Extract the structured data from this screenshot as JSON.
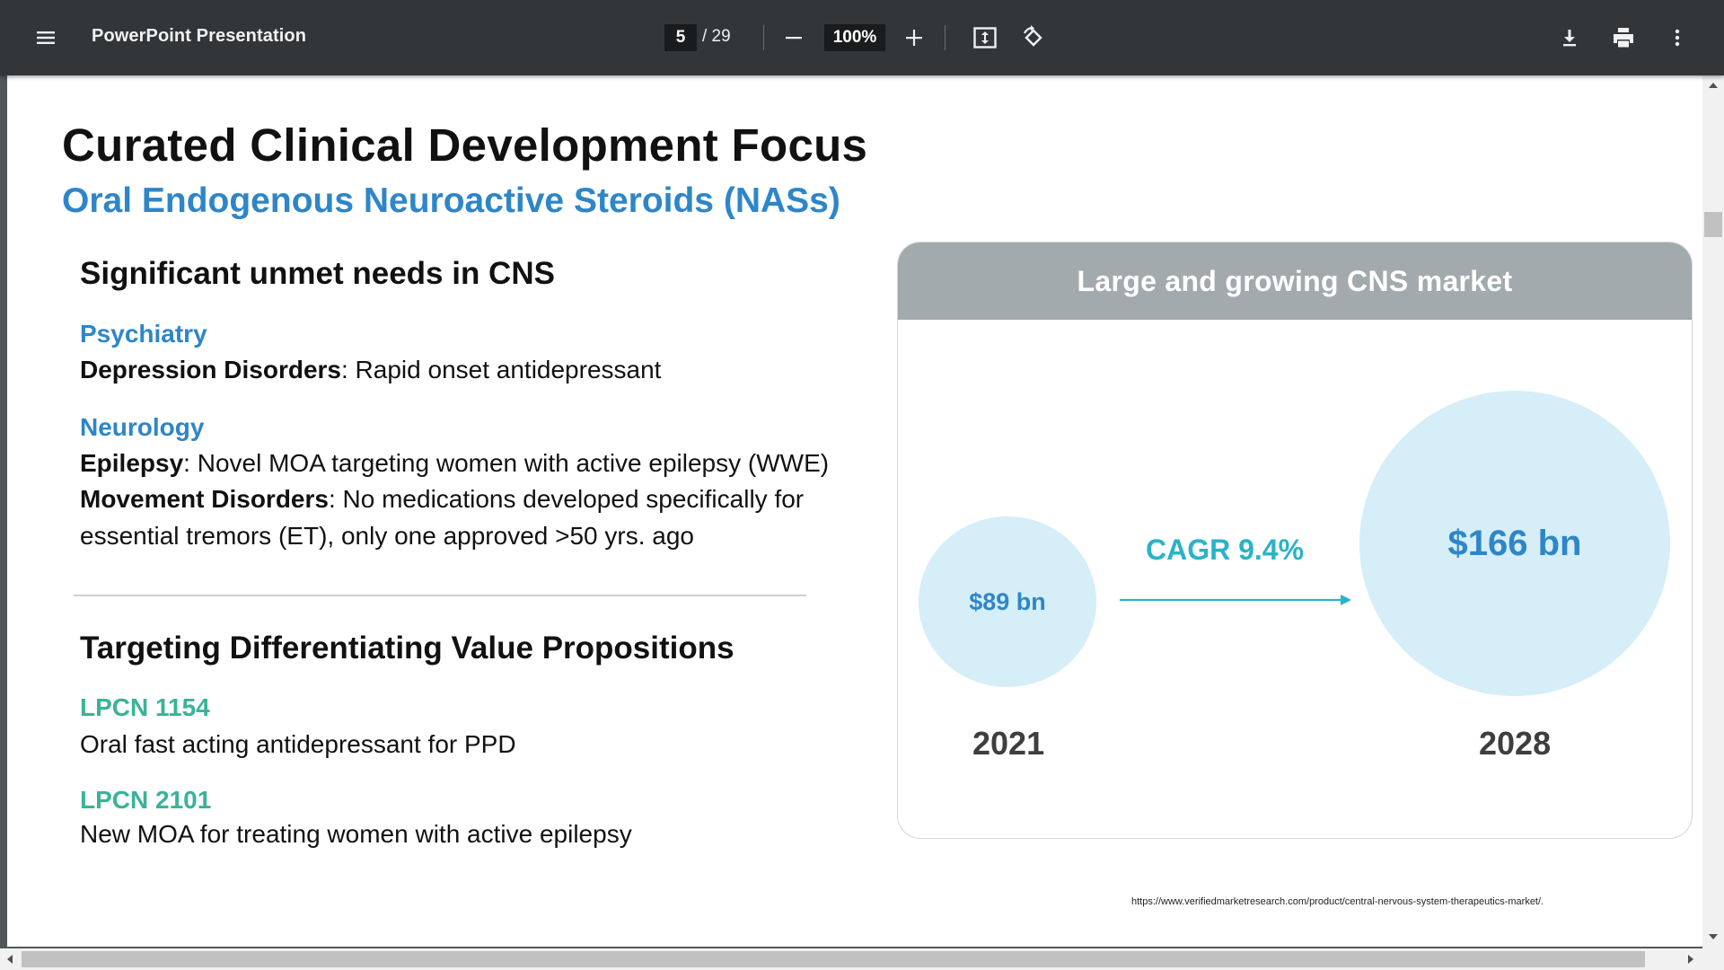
{
  "toolbar": {
    "title": "PowerPoint Presentation",
    "current_page": "5",
    "page_total": "/ 29",
    "zoom": "100%",
    "icons": [
      "menu-icon",
      "zoom-out-icon",
      "zoom-in-icon",
      "fit-page-icon",
      "rotate-icon",
      "download-icon",
      "print-icon",
      "more-options-icon"
    ]
  },
  "slide": {
    "title": "Curated Clinical Development Focus",
    "subtitle": "Oral Endogenous Neuroactive Steroids (NASs)",
    "unmet": {
      "heading": "Significant unmet needs in CNS",
      "psychiatry_label": "Psychiatry",
      "depression_term": "Depression Disorders",
      "depression_text": ":  Rapid onset antidepressant",
      "neurology_label": "Neurology",
      "epilepsy_term": "Epilepsy",
      "epilepsy_text": ": Novel MOA targeting women with active epilepsy (WWE)",
      "movement_term": "Movement Disorders",
      "movement_text": ": No medications developed specifically for",
      "movement_text_2": "essential tremors (ET), only one approved >50 yrs. ago"
    },
    "value": {
      "heading": "Targeting Differentiating Value Propositions",
      "product_1": "LPCN 1154",
      "product_1_desc": "Oral fast acting antidepressant for PPD",
      "product_2": "LPCN 2101",
      "product_2_desc": "New MOA for treating women with active epilepsy"
    },
    "market": {
      "header": "Large and growing CNS market",
      "value_2021": "$89 bn",
      "value_2028": "$166 bn",
      "cagr": "CAGR 9.4%",
      "year_2021": "2021",
      "year_2028": "2028",
      "bubble_color": "#d5eef8",
      "arrow_color": "#2ab3c8"
    },
    "source": "https://www.verifiedmarketresearch.com/product/central-nervous-system-therapeutics-market/."
  },
  "colors": {
    "toolbar_bg": "#323639",
    "accent_blue": "#2e86c8",
    "accent_green": "#3ab39a"
  }
}
